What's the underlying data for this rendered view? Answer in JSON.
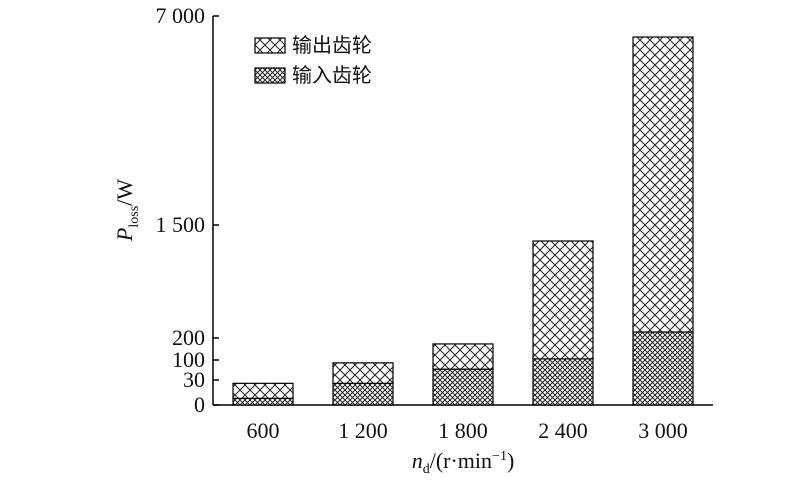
{
  "chart_data": {
    "type": "stacked_bar",
    "categories": [
      "600",
      "1 200",
      "1 800",
      "2 400",
      "3 000"
    ],
    "series": [
      {
        "name": "输入齿轮",
        "color": "#000000",
        "values": [
          8,
          26,
          68,
          105,
          269
        ]
      },
      {
        "name": "输出齿轮",
        "color": "#000000",
        "values": [
          18,
          64,
          105,
          1211,
          6178
        ]
      }
    ],
    "ylim": [
      0,
      7000
    ],
    "yticks": [
      0,
      30,
      100,
      200,
      {
        "value": 1500,
        "label": "1 500"
      },
      {
        "value": 7000,
        "label": "7 000"
      }
    ],
    "ylabel": [
      "P",
      "loss",
      "/W"
    ],
    "xlabel": [
      "n",
      "d",
      "/(r·min",
      "−1",
      ")"
    ],
    "legend": "upper left"
  }
}
